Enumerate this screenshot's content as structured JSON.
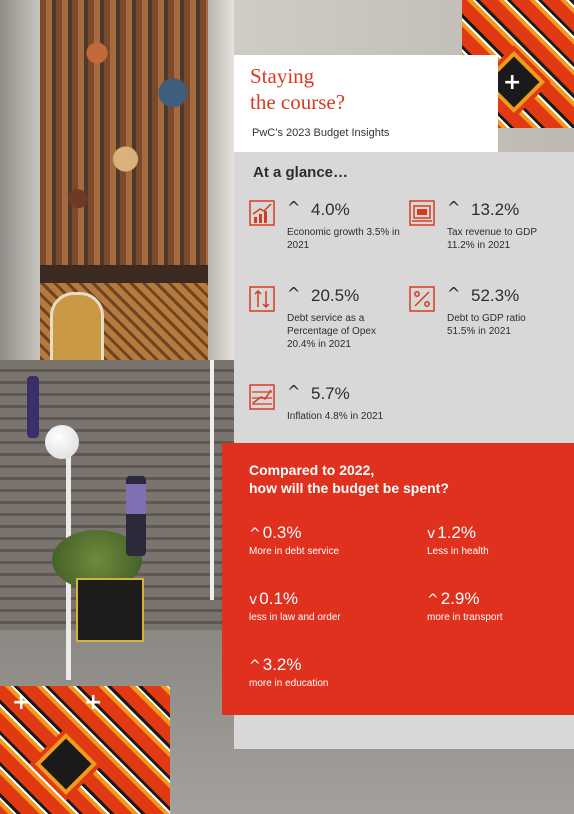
{
  "header": {
    "title": "Staying\nthe course?",
    "subtitle": "PwC’s 2023 Budget Insights"
  },
  "glance": {
    "title": "At a glance…",
    "stats": [
      {
        "icon": "growth-chart-icon",
        "arrow": "^",
        "value": "4.0%",
        "label": "Economic growth 3.5% in 2021"
      },
      {
        "icon": "tax-revenue-icon",
        "arrow": "^",
        "value": "13.2%",
        "label": "Tax revenue to GDP 11.2% in 2021"
      },
      {
        "icon": "debt-service-icon",
        "arrow": "^",
        "value": "20.5%",
        "label": "Debt service as a Percentage of Opex 20.4% in 2021"
      },
      {
        "icon": "percentage-icon",
        "arrow": "^",
        "value": "52.3%",
        "label": "Debt to GDP ratio 51.5% in 2021"
      },
      {
        "icon": "inflation-icon",
        "arrow": "^",
        "value": "5.7%",
        "label": "Inflation 4.8% in 2021"
      }
    ]
  },
  "budget": {
    "title": "Compared to 2022,\nhow will the budget be spent?",
    "items": [
      {
        "arrow": "^",
        "value": "0.3%",
        "label": "More in debt service"
      },
      {
        "arrow": "v",
        "value": "1.2%",
        "label": "Less in health"
      },
      {
        "arrow": "v",
        "value": "0.1%",
        "label": "less in law and order"
      },
      {
        "arrow": "^",
        "value": "2.9%",
        "label": "more in transport"
      },
      {
        "arrow": "^",
        "value": "3.2%",
        "label": "more in education"
      }
    ]
  },
  "colors": {
    "accent_red": "#e0301e",
    "title_red": "#d93a1f",
    "panel_grey": "#d8d8d8"
  }
}
